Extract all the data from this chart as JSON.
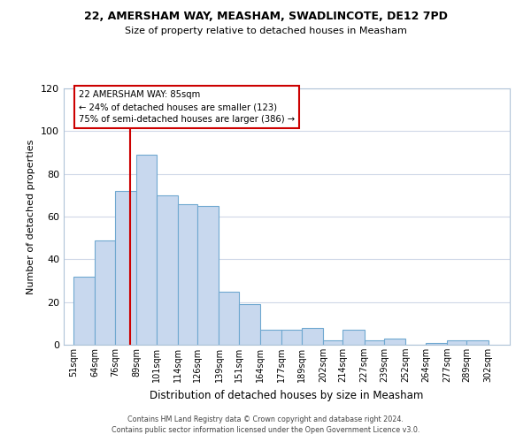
{
  "title1": "22, AMERSHAM WAY, MEASHAM, SWADLINCOTE, DE12 7PD",
  "title2": "Size of property relative to detached houses in Measham",
  "xlabel": "Distribution of detached houses by size in Measham",
  "ylabel": "Number of detached properties",
  "bar_left_edges": [
    51,
    64,
    76,
    89,
    101,
    114,
    126,
    139,
    151,
    164,
    177,
    189,
    202,
    214,
    227,
    239,
    252,
    264,
    277,
    289
  ],
  "bar_heights": [
    32,
    49,
    72,
    89,
    70,
    66,
    65,
    25,
    19,
    7,
    7,
    8,
    2,
    7,
    2,
    3,
    0,
    1,
    2,
    2
  ],
  "bar_widths": [
    13,
    12,
    13,
    12,
    13,
    12,
    13,
    12,
    13,
    13,
    12,
    13,
    12,
    13,
    12,
    13,
    12,
    13,
    12,
    13
  ],
  "tick_labels": [
    "51sqm",
    "64sqm",
    "76sqm",
    "89sqm",
    "101sqm",
    "114sqm",
    "126sqm",
    "139sqm",
    "151sqm",
    "164sqm",
    "177sqm",
    "189sqm",
    "202sqm",
    "214sqm",
    "227sqm",
    "239sqm",
    "252sqm",
    "264sqm",
    "277sqm",
    "289sqm",
    "302sqm"
  ],
  "tick_positions": [
    51,
    64,
    76,
    89,
    101,
    114,
    126,
    139,
    151,
    164,
    177,
    189,
    202,
    214,
    227,
    239,
    252,
    264,
    277,
    289,
    302
  ],
  "bar_color": "#c8d8ee",
  "bar_edge_color": "#6fa8d0",
  "vline_x": 85,
  "vline_color": "#cc0000",
  "ylim": [
    0,
    120
  ],
  "yticks": [
    0,
    20,
    40,
    60,
    80,
    100,
    120
  ],
  "annotation_title": "22 AMERSHAM WAY: 85sqm",
  "annotation_line1": "← 24% of detached houses are smaller (123)",
  "annotation_line2": "75% of semi-detached houses are larger (386) →",
  "annotation_box_color": "#ffffff",
  "annotation_box_edge": "#cc0000",
  "footer1": "Contains HM Land Registry data © Crown copyright and database right 2024.",
  "footer2": "Contains public sector information licensed under the Open Government Licence v3.0.",
  "background_color": "#ffffff",
  "grid_color": "#d0d8e8"
}
